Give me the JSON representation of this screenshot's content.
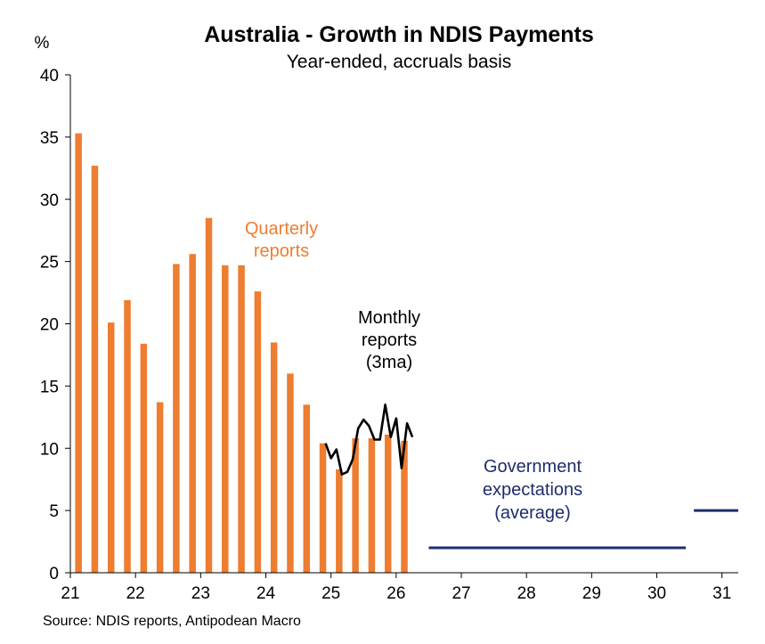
{
  "chart_data": {
    "type": "bar",
    "title": "Australia - Growth in NDIS Payments",
    "subtitle": "Year-ended, accruals basis",
    "ylabel": "%",
    "xlabel": "",
    "ylim": [
      0,
      40
    ],
    "xlim": [
      21,
      31.25
    ],
    "y_ticks": [
      "0",
      "5",
      "10",
      "15",
      "20",
      "25",
      "30",
      "35",
      "40"
    ],
    "x_ticks": [
      "21",
      "22",
      "23",
      "24",
      "25",
      "26",
      "27",
      "28",
      "29",
      "30",
      "31"
    ],
    "grid": false,
    "colors": {
      "quarterly": "#ED7D31",
      "monthly": "#000000",
      "government": "#1F2D6B"
    },
    "series": [
      {
        "key": "quarterly",
        "type": "bar",
        "x": [
          21.125,
          21.375,
          21.625,
          21.875,
          22.125,
          22.375,
          22.625,
          22.875,
          23.125,
          23.375,
          23.625,
          23.875,
          24.125,
          24.375,
          24.625,
          24.875,
          25.125,
          25.375,
          25.625,
          25.875,
          26.125
        ],
        "values": [
          35.3,
          32.7,
          20.1,
          21.9,
          18.4,
          13.7,
          24.8,
          25.6,
          28.5,
          24.7,
          24.7,
          22.6,
          18.5,
          16.0,
          13.5,
          10.4,
          8.3,
          10.8,
          10.8,
          11.1,
          10.6
        ]
      },
      {
        "key": "monthly",
        "type": "line",
        "x": [
          24.917,
          25.0,
          25.083,
          25.167,
          25.25,
          25.333,
          25.417,
          25.5,
          25.583,
          25.667,
          25.75,
          25.833,
          25.917,
          26.0,
          26.083,
          26.167,
          26.25
        ],
        "values": [
          10.4,
          9.2,
          9.9,
          7.9,
          8.1,
          9.1,
          11.6,
          12.3,
          11.8,
          10.7,
          10.7,
          13.5,
          10.9,
          12.4,
          8.4,
          12.0,
          10.9
        ]
      },
      {
        "key": "government",
        "type": "line-segments",
        "segments": [
          {
            "x": [
              26.5,
              30.5
            ],
            "value": 2.0
          },
          {
            "x": [
              30.5,
              31.25
            ],
            "value": 5.0
          }
        ]
      }
    ],
    "annotations": {
      "quarterly": [
        "Quarterly",
        "reports"
      ],
      "monthly": [
        "Monthly",
        "reports",
        "(3ma)"
      ],
      "government": [
        "Government",
        "expectations",
        "(average)"
      ]
    },
    "source": "Source: NDIS reports, Antipodean Macro"
  }
}
